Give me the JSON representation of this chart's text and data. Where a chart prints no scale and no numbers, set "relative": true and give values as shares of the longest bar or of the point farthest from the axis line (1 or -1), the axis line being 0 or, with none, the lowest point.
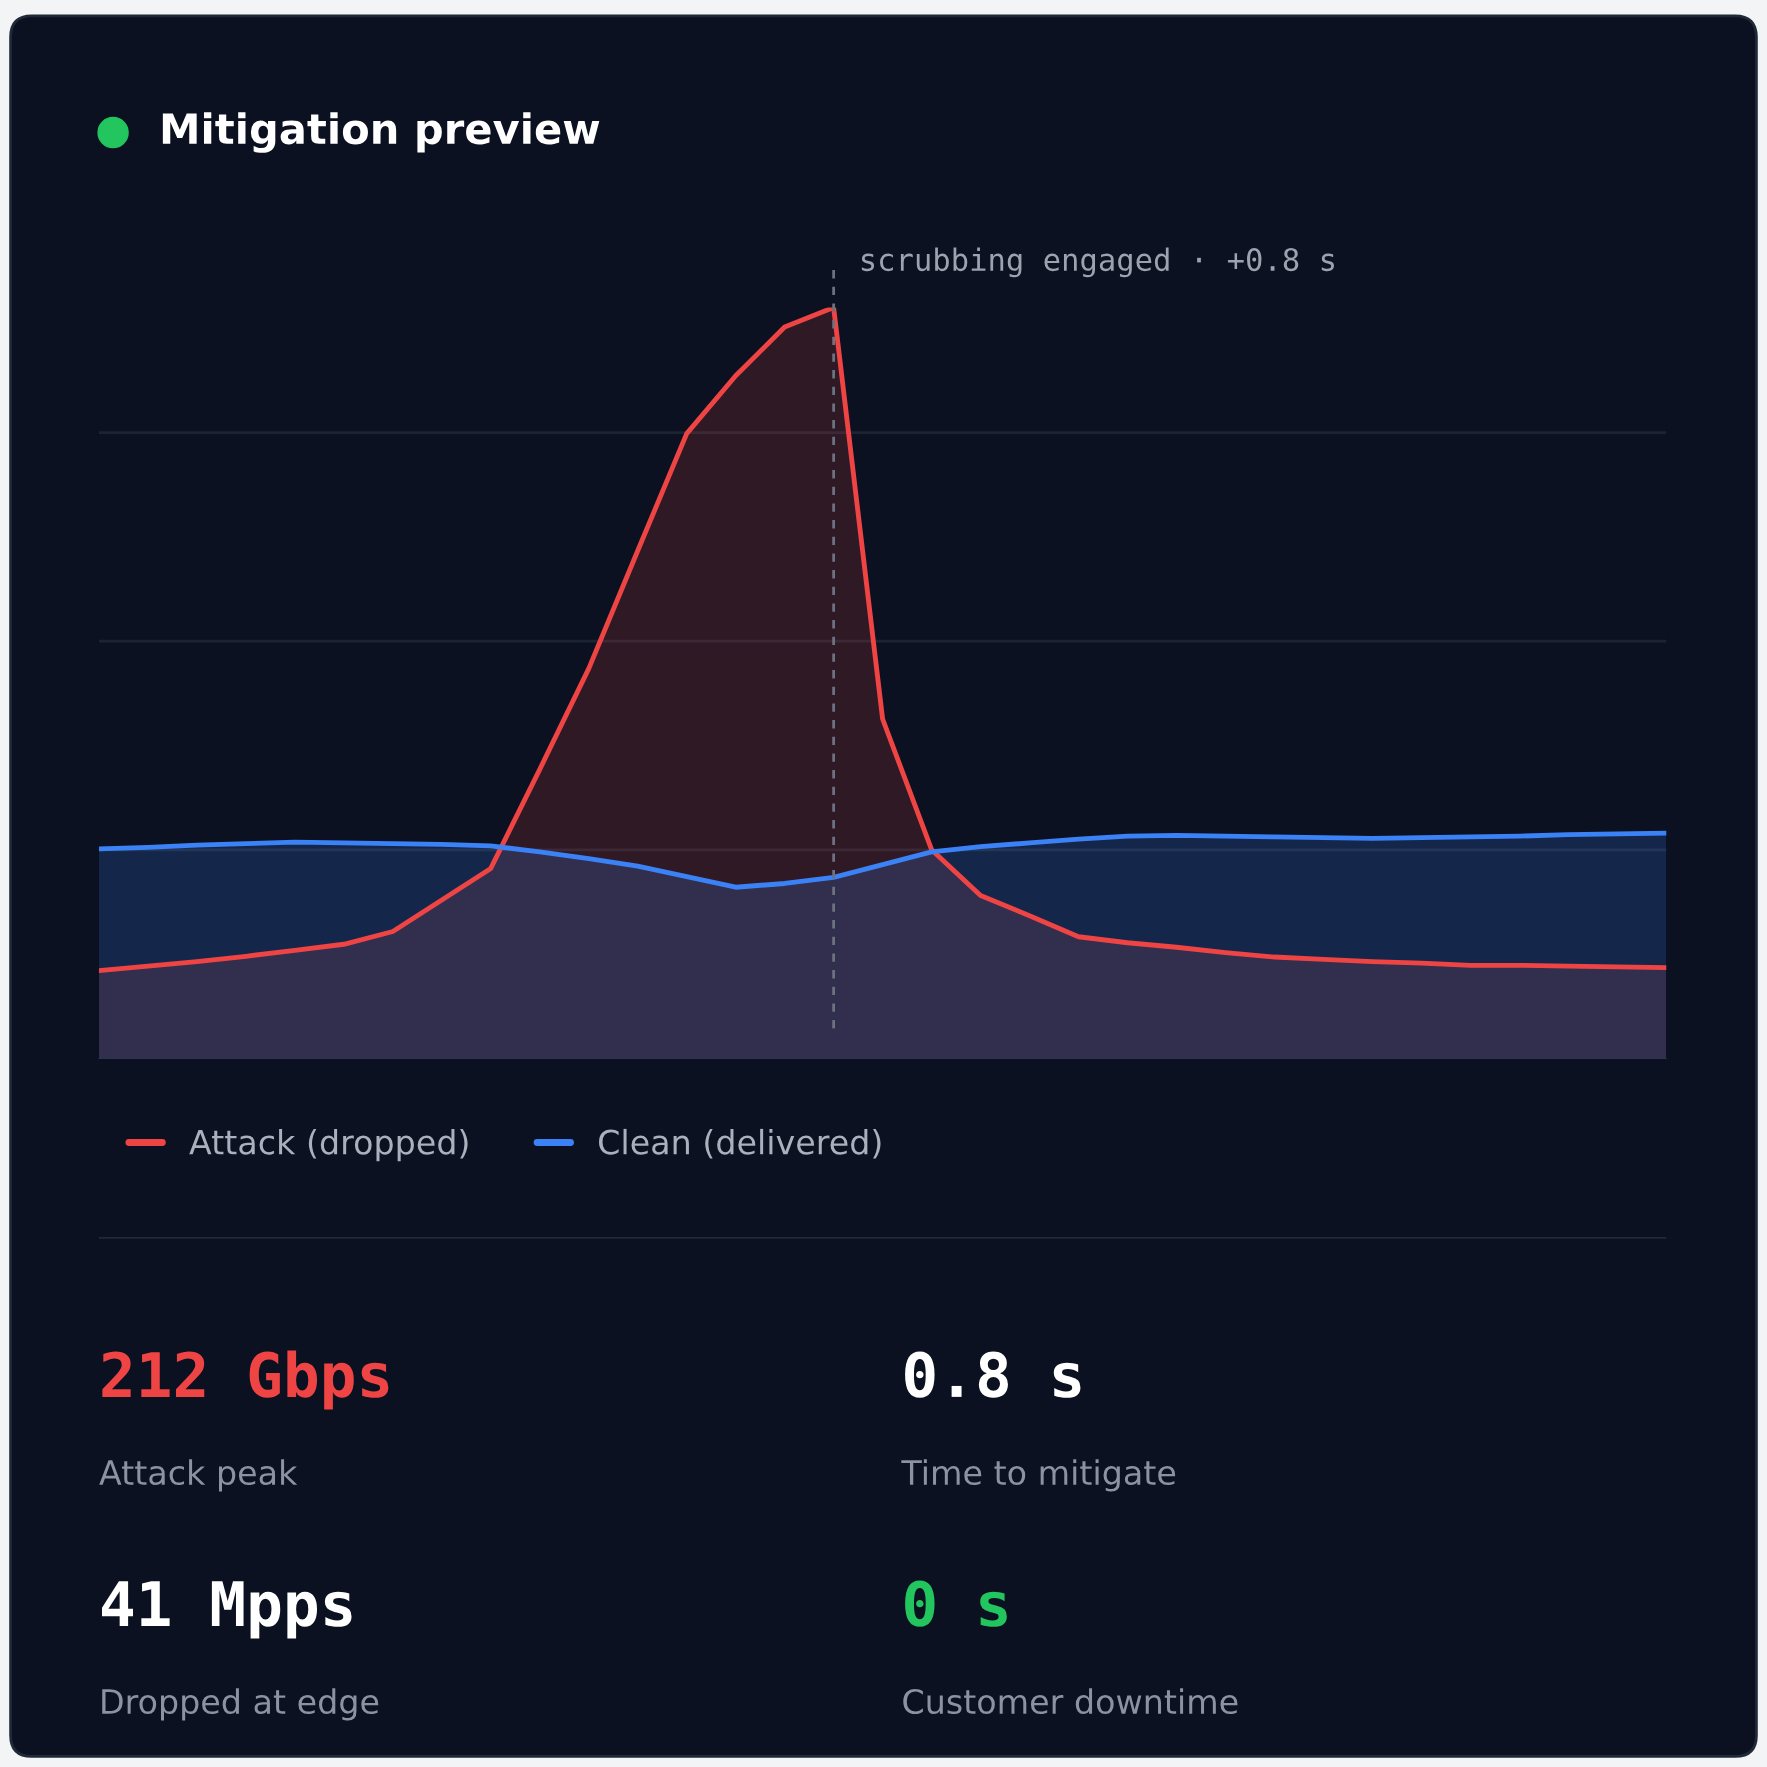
{
  "chart_data": [
    {
      "type": "area",
      "title": "Mitigation preview",
      "relative": true,
      "grid": "y",
      "legend": "bottom left",
      "categories": [
        null,
        null,
        null,
        null,
        null,
        null,
        null,
        null,
        null,
        null,
        null,
        null,
        null,
        null,
        null,
        null,
        null,
        null,
        null,
        null,
        null,
        null,
        null,
        null,
        null,
        null,
        null,
        null,
        null,
        null,
        null,
        null,
        null
      ],
      "series": [
        {
          "name": "Attack (dropped)",
          "color": "#ef4444",
          "values": [
            0.117,
            0.123,
            0.129,
            0.136,
            0.144,
            0.152,
            0.169,
            0.211,
            0.253,
            0.385,
            0.519,
            0.676,
            0.832,
            0.909,
            0.974,
            1,
            0.452,
            0.278,
            0.217,
            0.19,
            0.162,
            0.154,
            0.148,
            0.141,
            0.135,
            0.132,
            0.129,
            0.127,
            0.124,
            0.124,
            0.123,
            0.122,
            0.121
          ]
        },
        {
          "name": "Clean (delivered)",
          "color": "#3b82f6",
          "values": [
            0.279,
            0.281,
            0.284,
            0.286,
            0.288,
            0.287,
            0.286,
            0.285,
            0.283,
            0.275,
            0.266,
            0.256,
            0.242,
            0.228,
            0.233,
            0.241,
            0.258,
            0.275,
            0.282,
            0.287,
            0.292,
            0.296,
            0.297,
            0.296,
            0.295,
            0.294,
            0.293,
            0.294,
            0.295,
            0.296,
            0.298,
            0.299,
            0.3
          ]
        }
      ],
      "annotations": [
        "scrubbing engaged · +0.8 s"
      ]
    },
    {
      "type": "other",
      "annotations": [
        "212 Gbps",
        "Attack peak",
        "0.8 s",
        "Time to mitigate",
        "41 Mpps",
        "Dropped at edge",
        "0 s",
        "Customer downtime"
      ],
      "colors": [
        "#ef4444",
        "#8b93a1",
        "#ffffff",
        "#8b93a1",
        "#ffffff",
        "#8b93a1",
        "#22c55e",
        "#8b93a1"
      ]
    }
  ]
}
